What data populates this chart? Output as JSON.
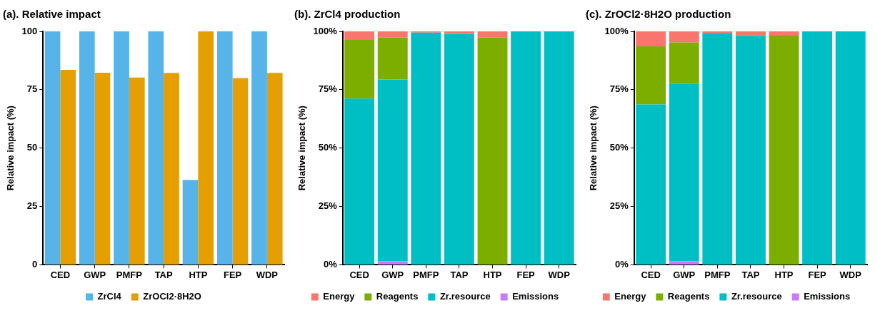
{
  "chart_data": [
    {
      "type": "bar",
      "title": "(a). Relative impact",
      "ylabel": "Relative impact (%)",
      "categories": [
        "CED",
        "GWP",
        "PMFP",
        "TAP",
        "HTP",
        "FEP",
        "WDP"
      ],
      "ylim": [
        0,
        100
      ],
      "yticks": [
        0,
        25,
        50,
        75,
        100
      ],
      "grid": false,
      "legend": "bottom",
      "series": [
        {
          "name": "ZrCl4",
          "color": "#56b4e9",
          "values": [
            100,
            100,
            100,
            100,
            36.3,
            100,
            100
          ]
        },
        {
          "name": "ZrOCl2·8H2O",
          "color": "#e69f00",
          "values": [
            83.5,
            82.3,
            80.2,
            82.2,
            100,
            80,
            82.2
          ]
        }
      ]
    },
    {
      "type": "bar",
      "stacked": true,
      "title": "(b). ZrCl4 production",
      "ylabel": "Relative impact (%)",
      "categories": [
        "CED",
        "GWP",
        "PMFP",
        "TAP",
        "HTP",
        "FEP",
        "WDP"
      ],
      "ylim": [
        0,
        100
      ],
      "yticks": [
        {
          "value": 0,
          "label": "0%"
        },
        {
          "value": 25,
          "label": "25%"
        },
        {
          "value": 50,
          "label": "50%"
        },
        {
          "value": 75,
          "label": "75%"
        },
        {
          "value": 100,
          "label": "100%"
        }
      ],
      "grid": false,
      "legend": "bottom",
      "series": [
        {
          "name": "Emissions",
          "color": "#c77cff",
          "values": [
            0,
            1.6,
            0,
            0,
            0,
            0,
            0
          ]
        },
        {
          "name": "Zr.resource",
          "color": "#00bfc4",
          "values": [
            71.2,
            77.8,
            99.5,
            98.9,
            0,
            100,
            100
          ]
        },
        {
          "name": "Reagents",
          "color": "#7cae00",
          "values": [
            25.1,
            17.9,
            0,
            0,
            97.3,
            0,
            0
          ]
        },
        {
          "name": "Energy",
          "color": "#f8766d",
          "values": [
            3.7,
            2.7,
            0.5,
            1.1,
            2.7,
            0,
            0
          ]
        }
      ]
    },
    {
      "type": "bar",
      "stacked": true,
      "title": "(c). ZrOCl2·8H2O production",
      "ylabel": "Relative impact (%)",
      "categories": [
        "CED",
        "GWP",
        "PMFP",
        "TAP",
        "HTP",
        "FEP",
        "WDP"
      ],
      "ylim": [
        0,
        100
      ],
      "yticks": [
        {
          "value": 0,
          "label": "0%"
        },
        {
          "value": 25,
          "label": "25%"
        },
        {
          "value": 50,
          "label": "50%"
        },
        {
          "value": 75,
          "label": "75%"
        },
        {
          "value": 100,
          "label": "100%"
        }
      ],
      "grid": false,
      "legend": "bottom",
      "series": [
        {
          "name": "Emissions",
          "color": "#c77cff",
          "values": [
            0,
            1.6,
            0,
            0,
            0,
            0,
            0
          ]
        },
        {
          "name": "Zr.resource",
          "color": "#00bfc4",
          "values": [
            68.7,
            75.9,
            99.3,
            98.1,
            0,
            100,
            100
          ]
        },
        {
          "name": "Reagents",
          "color": "#7cae00",
          "values": [
            24.9,
            17.8,
            0,
            0,
            98.2,
            0,
            0
          ]
        },
        {
          "name": "Energy",
          "color": "#f8766d",
          "values": [
            6.4,
            4.7,
            0.7,
            1.9,
            1.8,
            0,
            0
          ]
        }
      ]
    }
  ]
}
